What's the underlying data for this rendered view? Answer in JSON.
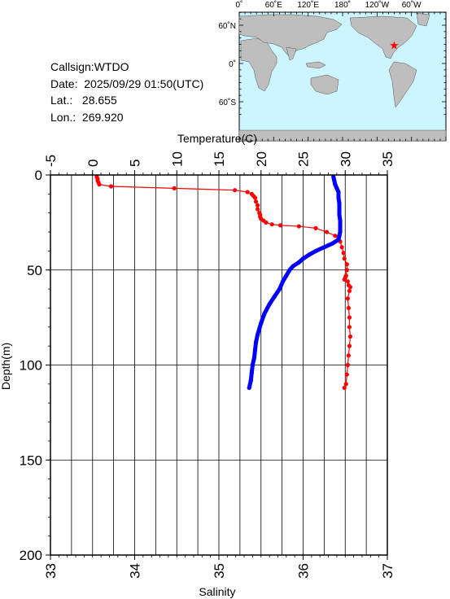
{
  "info": {
    "callsign": "Callsign:WTDO",
    "date": "Date:  2025/09/29 01:50(UTC)",
    "lat": "Lat.:   28.655",
    "lon": "Lon.:  269.920"
  },
  "map": {
    "top_labels": [
      "0˚",
      "60˚E",
      "120˚E",
      "180˚",
      "120˚W",
      "60˚W"
    ],
    "left_labels": [
      "60˚N",
      "0˚",
      "60˚S"
    ],
    "ocean_color": "#ccf5ff",
    "land_color": "#bebebe",
    "marker_color": "#ff0000",
    "marker": {
      "lon": 269.92,
      "lat": 28.655
    }
  },
  "chart_data": {
    "type": "line",
    "top_axis": {
      "label": "Temperature(C)",
      "range": [
        -5,
        35
      ],
      "ticks": [
        -5,
        0,
        5,
        10,
        15,
        20,
        25,
        30,
        35
      ]
    },
    "bottom_axis": {
      "label": "Salinity",
      "range": [
        33,
        37
      ],
      "ticks": [
        33,
        34,
        35,
        36,
        37
      ]
    },
    "left_axis": {
      "label": "Depth(m)",
      "range": [
        0,
        200
      ],
      "inverted": true,
      "ticks": [
        0,
        50,
        100,
        150,
        200
      ]
    },
    "grid": true,
    "series": [
      {
        "quantity": "Temperature(C)",
        "axis": "top",
        "color": "#ff0000",
        "points": [
          [
            0.5,
            1
          ],
          [
            0.6,
            2
          ],
          [
            0.6,
            3
          ],
          [
            0.7,
            4
          ],
          [
            0.8,
            5
          ],
          [
            2.2,
            6
          ],
          [
            9.7,
            7
          ],
          [
            16.9,
            8
          ],
          [
            18.4,
            9
          ],
          [
            18.9,
            10
          ],
          [
            19.1,
            11
          ],
          [
            19.3,
            12
          ],
          [
            19.4,
            14
          ],
          [
            19.6,
            16
          ],
          [
            19.6,
            18
          ],
          [
            19.8,
            20
          ],
          [
            19.9,
            21
          ],
          [
            19.9,
            22
          ],
          [
            20.0,
            23
          ],
          [
            20.3,
            24
          ],
          [
            20.6,
            25
          ],
          [
            21.3,
            26
          ],
          [
            22.3,
            26.5
          ],
          [
            24.5,
            27
          ],
          [
            26.5,
            28
          ],
          [
            27.8,
            30
          ],
          [
            28.8,
            32
          ],
          [
            29.4,
            35
          ],
          [
            29.6,
            38
          ],
          [
            29.8,
            41
          ],
          [
            29.9,
            44
          ],
          [
            30.2,
            47
          ],
          [
            30.2,
            50
          ],
          [
            30.1,
            53
          ],
          [
            30.0,
            54
          ],
          [
            29.9,
            55
          ],
          [
            30.3,
            56
          ],
          [
            30.4,
            58
          ],
          [
            30.6,
            59
          ],
          [
            30.5,
            61
          ],
          [
            30.3,
            65
          ],
          [
            30.4,
            70
          ],
          [
            30.5,
            75
          ],
          [
            30.5,
            80
          ],
          [
            30.6,
            85
          ],
          [
            30.5,
            90
          ],
          [
            30.4,
            95
          ],
          [
            30.3,
            100
          ],
          [
            30.2,
            105
          ],
          [
            30.1,
            110
          ],
          [
            29.9,
            112
          ]
        ]
      },
      {
        "quantity": "Salinity",
        "axis": "bottom",
        "color": "#0000ff",
        "points": [
          [
            36.36,
            1
          ],
          [
            36.37,
            3
          ],
          [
            36.38,
            5
          ],
          [
            36.4,
            7
          ],
          [
            36.42,
            9
          ],
          [
            36.42,
            12
          ],
          [
            36.43,
            15
          ],
          [
            36.43,
            18
          ],
          [
            36.43,
            21
          ],
          [
            36.44,
            24
          ],
          [
            36.44,
            27
          ],
          [
            36.44,
            30
          ],
          [
            36.43,
            32
          ],
          [
            36.42,
            34
          ],
          [
            36.35,
            36
          ],
          [
            36.25,
            38
          ],
          [
            36.15,
            40
          ],
          [
            36.07,
            42
          ],
          [
            36.0,
            44
          ],
          [
            35.95,
            46
          ],
          [
            35.88,
            48
          ],
          [
            35.84,
            50
          ],
          [
            35.8,
            53
          ],
          [
            35.76,
            56
          ],
          [
            35.72,
            60
          ],
          [
            35.66,
            64
          ],
          [
            35.6,
            68
          ],
          [
            35.54,
            73
          ],
          [
            35.5,
            78
          ],
          [
            35.46,
            84
          ],
          [
            35.44,
            88
          ],
          [
            35.43,
            92
          ],
          [
            35.42,
            96
          ],
          [
            35.4,
            100
          ],
          [
            35.39,
            104
          ],
          [
            35.38,
            108
          ],
          [
            35.36,
            112
          ]
        ]
      }
    ]
  }
}
